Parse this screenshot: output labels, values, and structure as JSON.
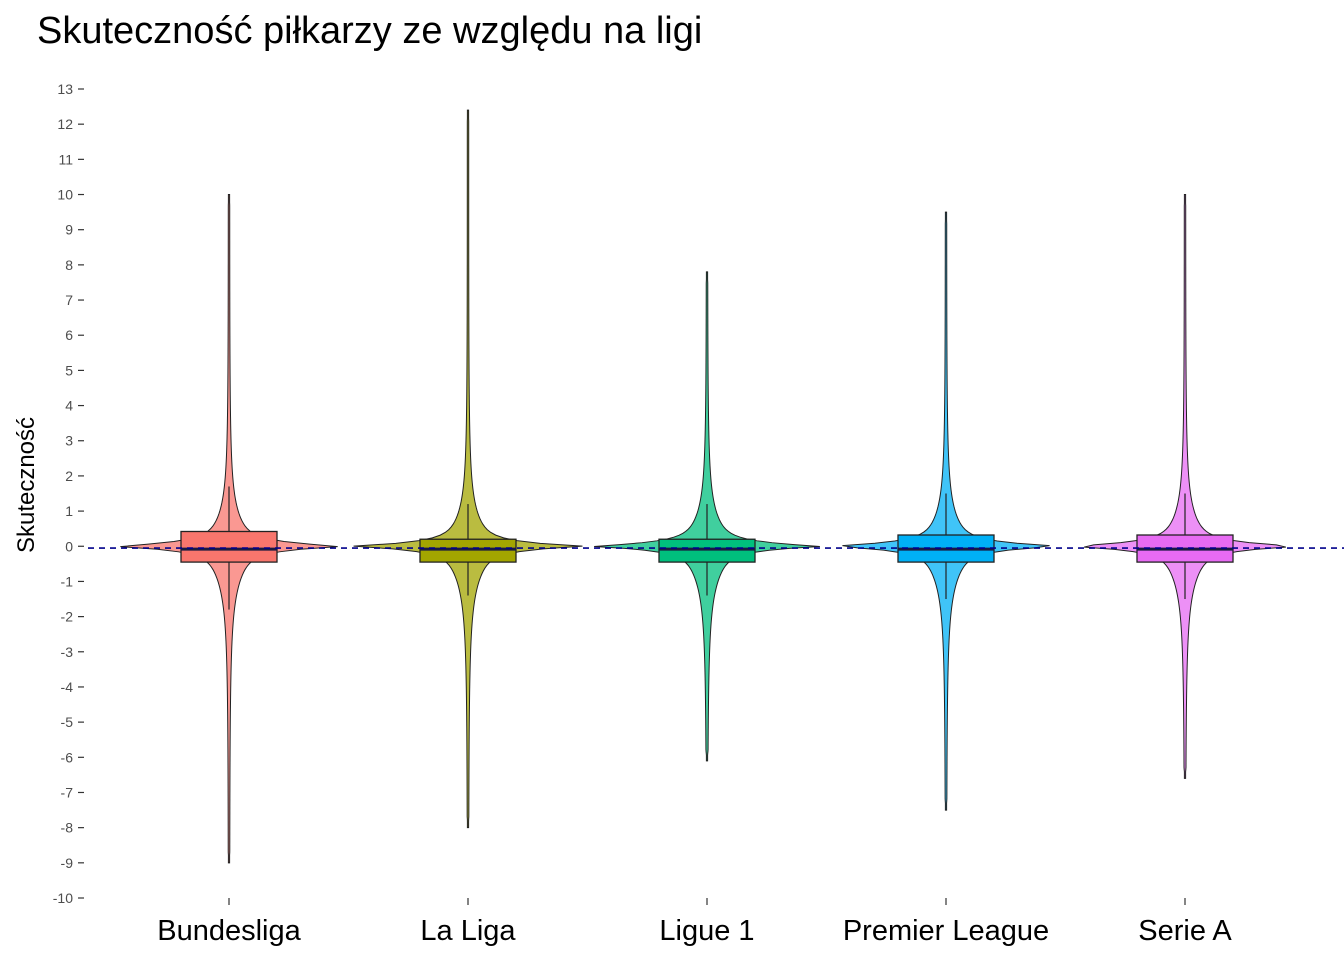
{
  "chart_data": {
    "type": "violin",
    "title": "Skuteczność piłkarzy ze względu na ligi",
    "xlabel": "",
    "ylabel": "Skuteczność",
    "ylim": [
      -10,
      13
    ],
    "yticks": [
      -10,
      -9,
      -8,
      -7,
      -6,
      -5,
      -4,
      -3,
      -2,
      -1,
      0,
      1,
      2,
      3,
      4,
      5,
      6,
      7,
      8,
      9,
      10,
      11,
      12,
      13
    ],
    "grid": false,
    "legend": "none",
    "reference_line": {
      "y": -0.05,
      "style": "dashed",
      "color": "#00008B"
    },
    "categories": [
      "Bundesliga",
      "La Liga",
      "Ligue 1",
      "Premier League",
      "Serie A"
    ],
    "series": [
      {
        "category": "Bundesliga",
        "color": "#F8766D",
        "min": -9.0,
        "max": 10.0,
        "q1": -0.45,
        "median": -0.08,
        "q3": 0.42,
        "whisker_low": -1.8,
        "whisker_high": 1.7
      },
      {
        "category": "La Liga",
        "color": "#A3A500",
        "min": -8.0,
        "max": 12.4,
        "q1": -0.45,
        "median": -0.08,
        "q3": 0.2,
        "whisker_low": -1.4,
        "whisker_high": 1.2
      },
      {
        "category": "Ligue 1",
        "color": "#00BF7D",
        "min": -6.1,
        "max": 7.8,
        "q1": -0.45,
        "median": -0.08,
        "q3": 0.2,
        "whisker_low": -1.4,
        "whisker_high": 1.2
      },
      {
        "category": "Premier League",
        "color": "#00B0F6",
        "min": -7.5,
        "max": 9.5,
        "q1": -0.45,
        "median": -0.08,
        "q3": 0.32,
        "whisker_low": -1.5,
        "whisker_high": 1.5
      },
      {
        "category": "Serie A",
        "color": "#E76BF3",
        "min": -6.6,
        "max": 10.0,
        "q1": -0.45,
        "median": -0.08,
        "q3": 0.32,
        "whisker_low": -1.5,
        "whisker_high": 1.5
      }
    ]
  }
}
